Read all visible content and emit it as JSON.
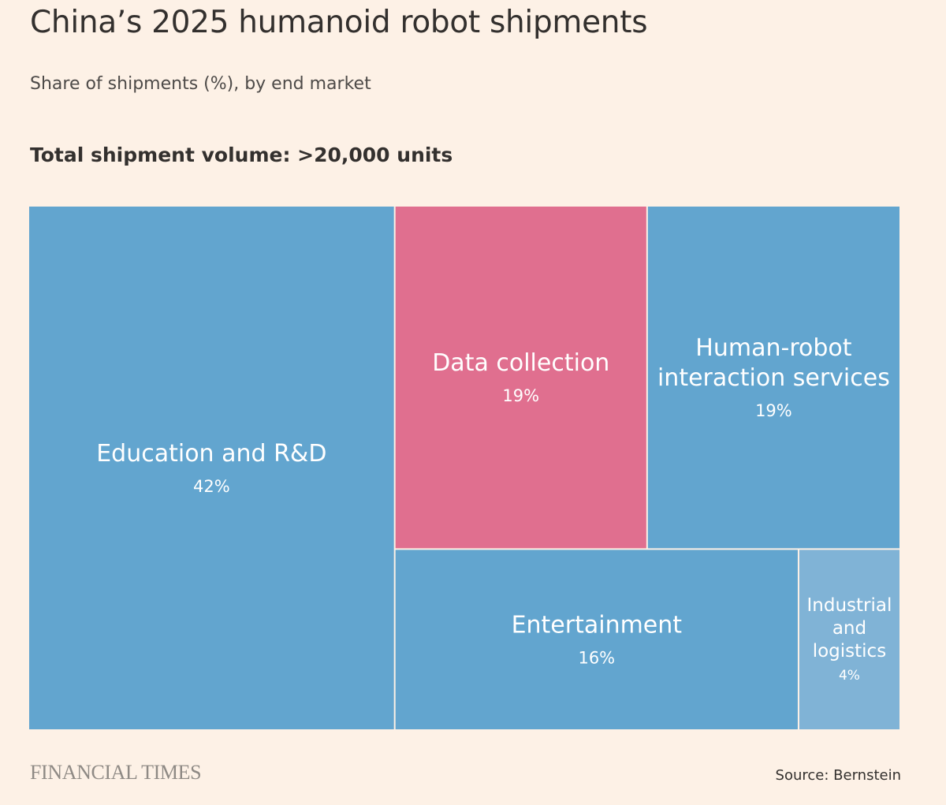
{
  "header": {
    "title": "China’s 2025 humanoid robot shipments",
    "subtitle": "Share of shipments (%), by end market",
    "total": "Total shipment volume: >20,000 units"
  },
  "footer": {
    "logo": "FINANCIAL TIMES",
    "source": "Source: Bernstein"
  },
  "colors": {
    "blue": "#62a5cf",
    "pink": "#e06f8f",
    "light_blue": "#80b3d6",
    "divider": "#fdf1e6",
    "label": "#ffffff"
  },
  "chart_data": {
    "type": "treemap",
    "title": "China’s 2025 humanoid robot shipments",
    "subtitle": "Share of shipments (%), by end market",
    "unit": "%",
    "items": [
      {
        "label": [
          "Education and R&D"
        ],
        "value": 42,
        "value_label": "42%",
        "color": "#62a5cf"
      },
      {
        "label": [
          "Data collection"
        ],
        "value": 19,
        "value_label": "19%",
        "color": "#e06f8f"
      },
      {
        "label": [
          "Human-robot",
          "interaction services"
        ],
        "value": 19,
        "value_label": "19%",
        "color": "#62a5cf"
      },
      {
        "label": [
          "Entertainment"
        ],
        "value": 16,
        "value_label": "16%",
        "color": "#62a5cf"
      },
      {
        "label": [
          "Industrial",
          "and",
          "logistics"
        ],
        "value": 4,
        "value_label": "4%",
        "color": "#80b3d6"
      }
    ]
  }
}
